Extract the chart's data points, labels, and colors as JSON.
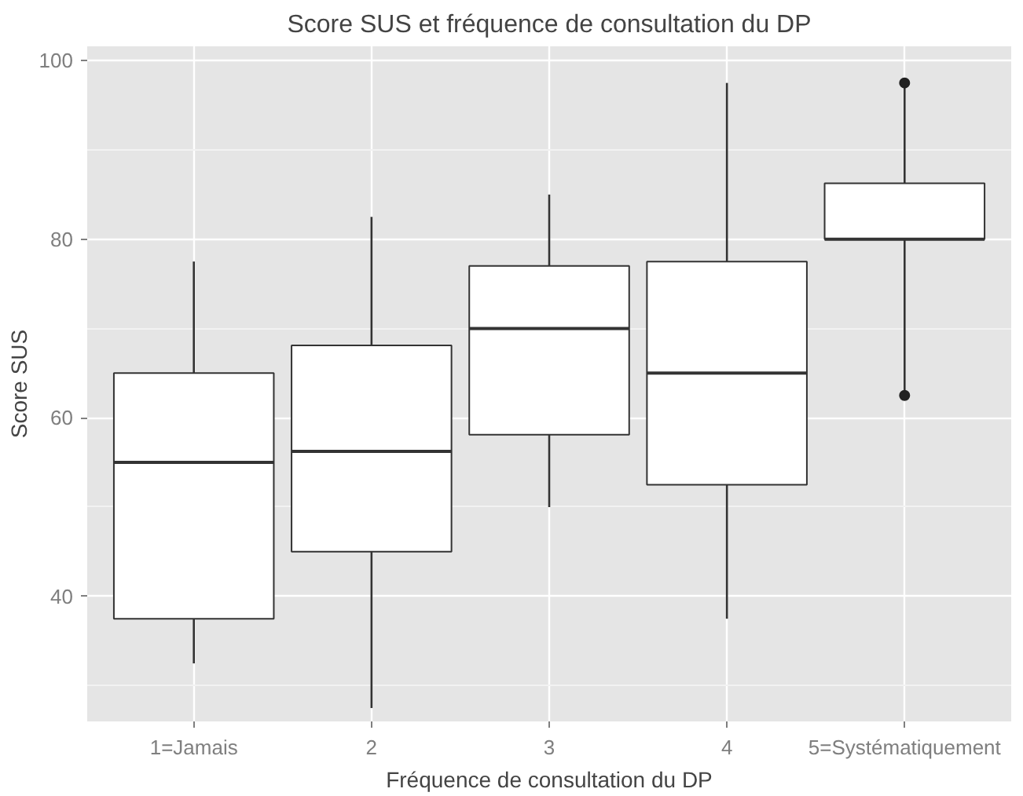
{
  "chart_data": {
    "type": "box",
    "title": "Score SUS et fréquence de consultation du DP",
    "xlabel": "Fréquence de consultation du DP",
    "ylabel": "Score SUS",
    "categories": [
      "1=Jamais",
      "2",
      "3",
      "4",
      "5=Systématiquement"
    ],
    "boxes": [
      {
        "low": 32.5,
        "q1": 37.5,
        "median": 55,
        "q3": 65,
        "high": 77.5
      },
      {
        "low": 27.5,
        "q1": 45,
        "median": 56.25,
        "q3": 68.1,
        "high": 82.5
      },
      {
        "low": 50,
        "q1": 58.1,
        "median": 70,
        "q3": 77,
        "high": 85
      },
      {
        "low": 37.5,
        "q1": 52.5,
        "median": 65,
        "q3": 77.5,
        "high": 97.5
      },
      {
        "low": 62.5,
        "q1": 80,
        "median": 80,
        "q3": 86.25,
        "high": 97.5,
        "outliers": [
          62.5,
          97.5
        ]
      }
    ],
    "color": "#ffffff",
    "ylim": [
      26,
      101.6
    ],
    "yticks": [
      40,
      60,
      80,
      100
    ],
    "grid": true
  }
}
